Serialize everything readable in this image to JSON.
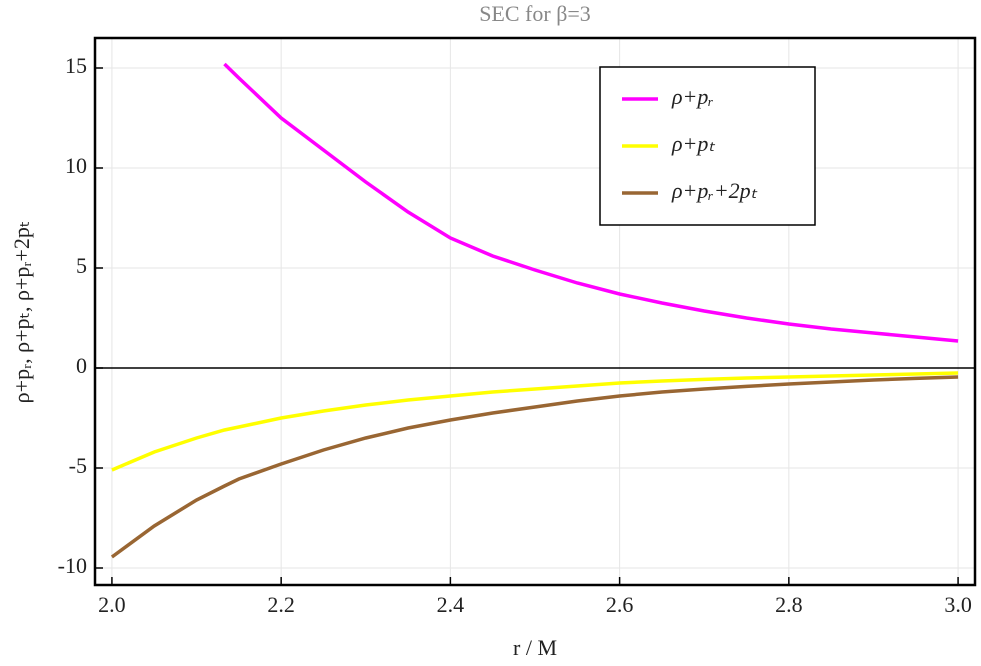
{
  "chart_data": {
    "type": "line",
    "title": "SEC for β=3",
    "x_label": "r / M",
    "y_label": "ρ+pᵣ, ρ+pₜ, ρ+pᵣ+2pₜ",
    "x": [
      2.0,
      2.05,
      2.1,
      2.133,
      2.15,
      2.2,
      2.25,
      2.3,
      2.35,
      2.4,
      2.45,
      2.5,
      2.55,
      2.6,
      2.65,
      2.7,
      2.75,
      2.8,
      2.85,
      2.9,
      2.95,
      3.0
    ],
    "series": [
      {
        "name": "ρ+pᵣ",
        "color": "#ff00ff",
        "values": [
          null,
          null,
          null,
          15.2,
          14.5,
          12.5,
          10.9,
          9.3,
          7.8,
          6.5,
          5.6,
          4.9,
          4.25,
          3.7,
          3.25,
          2.85,
          2.5,
          2.2,
          1.95,
          1.75,
          1.55,
          1.35
        ]
      },
      {
        "name": "ρ+pₜ",
        "color": "#ffff00",
        "values": [
          -5.1,
          -4.2,
          -3.5,
          -3.1,
          -2.95,
          -2.5,
          -2.15,
          -1.85,
          -1.6,
          -1.4,
          -1.2,
          -1.05,
          -0.9,
          -0.75,
          -0.65,
          -0.57,
          -0.5,
          -0.45,
          -0.4,
          -0.35,
          -0.3,
          -0.25
        ]
      },
      {
        "name": "ρ+pᵣ+2pₜ",
        "color": "#996633",
        "values": [
          -9.45,
          -7.9,
          -6.6,
          -5.9,
          -5.55,
          -4.8,
          -4.1,
          -3.5,
          -3.0,
          -2.6,
          -2.25,
          -1.95,
          -1.65,
          -1.4,
          -1.2,
          -1.05,
          -0.92,
          -0.8,
          -0.7,
          -0.6,
          -0.52,
          -0.45
        ]
      }
    ],
    "xlim": [
      1.98,
      3.02
    ],
    "ylim": [
      -10.85,
      16.5
    ],
    "xticks": [
      {
        "value": 2.0,
        "label": "2.0"
      },
      2.2,
      2.4,
      2.6,
      2.8,
      {
        "value": 3.0,
        "label": "3.0"
      }
    ],
    "yticks": [
      -10,
      -5,
      0,
      5,
      10,
      15
    ],
    "grid": true,
    "legend": "top-right"
  }
}
